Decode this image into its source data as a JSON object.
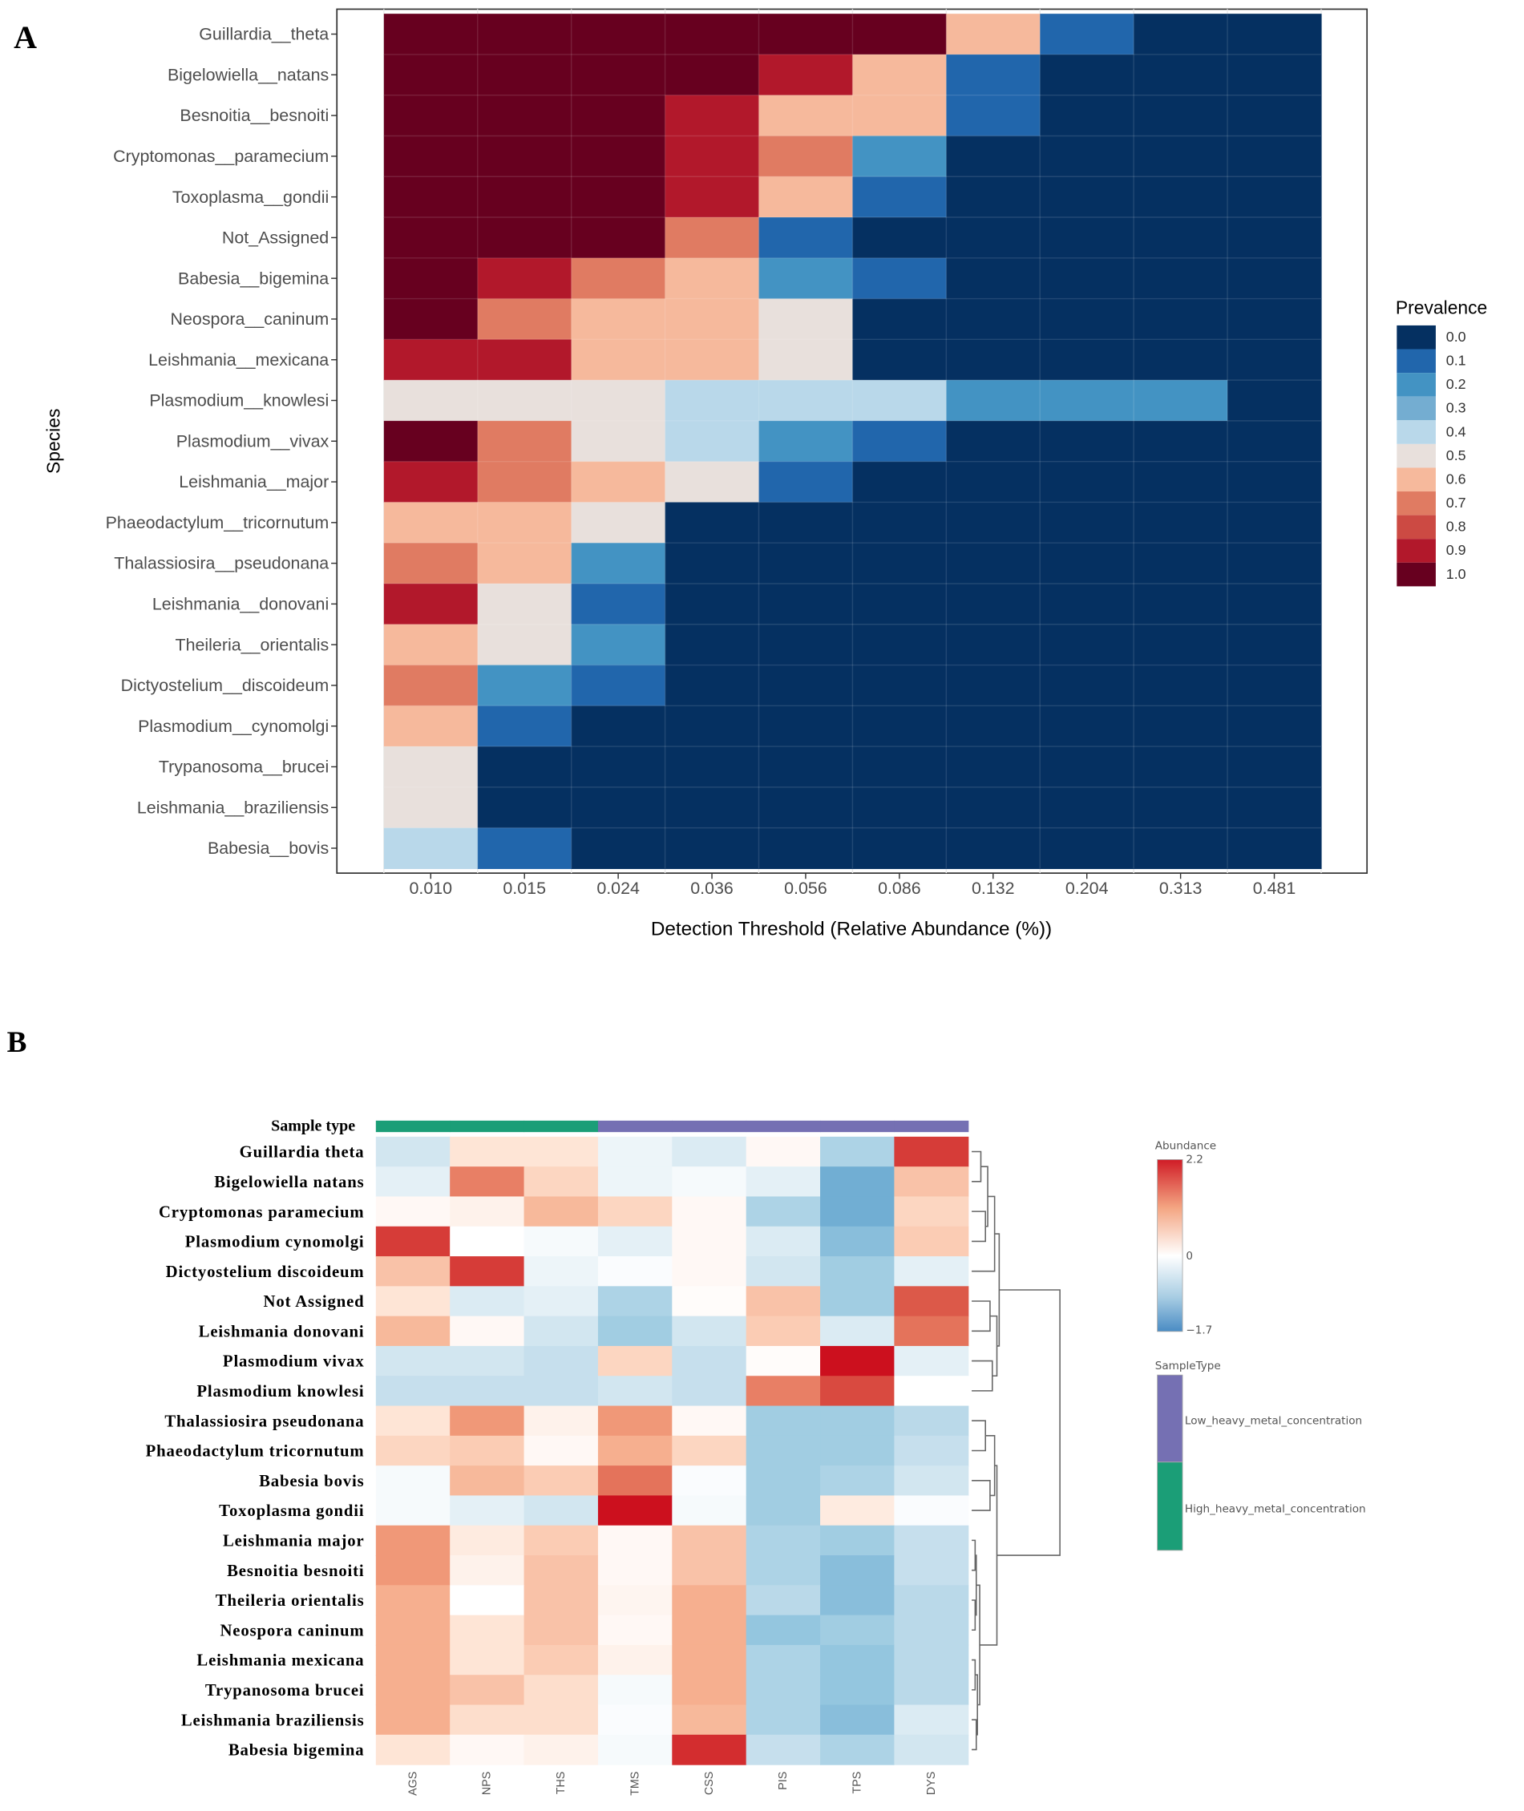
{
  "panel_labels": {
    "a": "A",
    "b": "B"
  },
  "chart_data": [
    {
      "type": "heatmap",
      "panel": "A",
      "xlabel": "Detection Threshold (Relative Abundance (%))",
      "ylabel": "Species",
      "x_categories": [
        "0.010",
        "0.015",
        "0.024",
        "0.036",
        "0.056",
        "0.086",
        "0.132",
        "0.204",
        "0.313",
        "0.481"
      ],
      "y_categories": [
        "Guillardia__theta",
        "Bigelowiella__natans",
        "Besnoitia__besnoiti",
        "Cryptomonas__paramecium",
        "Toxoplasma__gondii",
        "Not_Assigned",
        "Babesia__bigemina",
        "Neospora__caninum",
        "Leishmania__mexicana",
        "Plasmodium__knowlesi",
        "Plasmodium__vivax",
        "Leishmania__major",
        "Phaeodactylum__tricornutum",
        "Thalassiosira__pseudonana",
        "Leishmania__donovani",
        "Theileria__orientalis",
        "Dictyostelium__discoideum",
        "Plasmodium__cynomolgi",
        "Trypanosoma__brucei",
        "Leishmania__braziliensis",
        "Babesia__bovis"
      ],
      "values": [
        [
          1,
          1,
          1,
          1,
          1,
          1,
          0.6,
          0.1,
          0,
          0
        ],
        [
          1,
          1,
          1,
          1,
          0.9,
          0.6,
          0.1,
          0,
          0,
          0
        ],
        [
          1,
          1,
          1,
          0.9,
          0.6,
          0.6,
          0.1,
          0,
          0,
          0
        ],
        [
          1,
          1,
          1,
          0.9,
          0.7,
          0.2,
          0,
          0,
          0,
          0
        ],
        [
          1,
          1,
          1,
          0.9,
          0.6,
          0.1,
          0,
          0,
          0,
          0
        ],
        [
          1,
          1,
          1,
          0.7,
          0.1,
          0,
          0,
          0,
          0,
          0
        ],
        [
          1,
          0.9,
          0.7,
          0.6,
          0.2,
          0.1,
          0,
          0,
          0,
          0
        ],
        [
          1,
          0.7,
          0.6,
          0.6,
          0.5,
          0,
          0,
          0,
          0,
          0
        ],
        [
          0.9,
          0.9,
          0.6,
          0.6,
          0.5,
          0,
          0,
          0,
          0,
          0
        ],
        [
          0.5,
          0.5,
          0.5,
          0.4,
          0.4,
          0.4,
          0.2,
          0.2,
          0.2,
          0
        ],
        [
          1,
          0.7,
          0.5,
          0.4,
          0.2,
          0.1,
          0,
          0,
          0,
          0
        ],
        [
          0.9,
          0.7,
          0.6,
          0.5,
          0.1,
          0,
          0,
          0,
          0,
          0
        ],
        [
          0.6,
          0.6,
          0.5,
          0,
          0,
          0,
          0,
          0,
          0,
          0
        ],
        [
          0.7,
          0.6,
          0.2,
          0,
          0,
          0,
          0,
          0,
          0,
          0
        ],
        [
          0.9,
          0.5,
          0.1,
          0,
          0,
          0,
          0,
          0,
          0,
          0
        ],
        [
          0.6,
          0.5,
          0.2,
          0,
          0,
          0,
          0,
          0,
          0,
          0
        ],
        [
          0.7,
          0.2,
          0.1,
          0,
          0,
          0,
          0,
          0,
          0,
          0
        ],
        [
          0.6,
          0.1,
          0,
          0,
          0,
          0,
          0,
          0,
          0,
          0
        ],
        [
          0.5,
          0,
          0,
          0,
          0,
          0,
          0,
          0,
          0,
          0
        ],
        [
          0.5,
          0,
          0,
          0,
          0,
          0,
          0,
          0,
          0,
          0
        ],
        [
          0.4,
          0.1,
          0,
          0,
          0,
          0,
          0,
          0,
          0,
          0
        ]
      ],
      "legend": {
        "title": "Prevalence",
        "position": "right",
        "levels": [
          "0.0",
          "0.1",
          "0.2",
          "0.3",
          "0.4",
          "0.5",
          "0.6",
          "0.7",
          "0.8",
          "0.9",
          "1.0"
        ],
        "colors": [
          "#053061",
          "#2166ac",
          "#4393c3",
          "#74add1",
          "#b9d8ea",
          "#e8e0dc",
          "#f6b99c",
          "#e07b62",
          "#cc4a43",
          "#b2182b",
          "#67001f"
        ]
      }
    },
    {
      "type": "heatmap",
      "panel": "B",
      "x_categories": [
        "AGS",
        "NPS",
        "THS",
        "TMS",
        "CSS",
        "PIS",
        "TPS",
        "DYS"
      ],
      "y_categories": [
        "Guillardia theta",
        "Bigelowiella natans",
        "Cryptomonas paramecium",
        "Plasmodium cynomolgi",
        "Dictyostelium discoideum",
        "Not Assigned",
        "Leishmania donovani",
        "Plasmodium vivax",
        "Plasmodium knowlesi",
        "Thalassiosira pseudonana",
        "Phaeodactylum tricornutum",
        "Babesia bovis",
        "Toxoplasma gondii",
        "Leishmania major",
        "Besnoitia besnoiti",
        "Theileria orientalis",
        "Neospora caninum",
        "Leishmania mexicana",
        "Trypanosoma brucei",
        "Leishmania braziliensis",
        "Babesia bigemina"
      ],
      "values": [
        [
          -0.5,
          0.4,
          0.4,
          -0.2,
          -0.4,
          0.1,
          -0.8,
          1.9
        ],
        [
          -0.3,
          1.4,
          0.6,
          -0.2,
          -0.1,
          -0.3,
          -1.3,
          0.8
        ],
        [
          0.1,
          0.2,
          0.9,
          0.6,
          0.1,
          -0.8,
          -1.3,
          0.6
        ],
        [
          1.9,
          0,
          -0.1,
          -0.3,
          0.1,
          -0.4,
          -1.1,
          0.7
        ],
        [
          0.8,
          1.9,
          -0.2,
          -0.05,
          0.1,
          -0.5,
          -0.9,
          -0.3
        ],
        [
          0.4,
          -0.4,
          -0.3,
          -0.8,
          0.05,
          0.8,
          -0.9,
          1.7
        ],
        [
          0.9,
          0.1,
          -0.5,
          -0.9,
          -0.5,
          0.7,
          -0.4,
          1.5
        ],
        [
          -0.5,
          -0.5,
          -0.6,
          0.6,
          -0.6,
          0.05,
          2.2,
          -0.3
        ],
        [
          -0.6,
          -0.6,
          -0.6,
          -0.5,
          -0.6,
          1.4,
          1.8,
          0
        ],
        [
          0.4,
          1.2,
          0.2,
          1.2,
          0.1,
          -0.9,
          -0.9,
          -0.7
        ],
        [
          0.6,
          0.7,
          0.1,
          1.0,
          0.6,
          -0.9,
          -0.9,
          -0.6
        ],
        [
          -0.1,
          0.9,
          0.7,
          1.5,
          -0.05,
          -0.9,
          -0.8,
          -0.5
        ],
        [
          -0.1,
          -0.3,
          -0.5,
          2.2,
          -0.1,
          -0.9,
          0.3,
          -0.05
        ],
        [
          1.2,
          0.3,
          0.7,
          0.1,
          0.8,
          -0.8,
          -0.9,
          -0.6
        ],
        [
          1.2,
          0.2,
          0.8,
          0.1,
          0.8,
          -0.8,
          -1.1,
          -0.6
        ],
        [
          1.0,
          0,
          0.8,
          0.15,
          1.0,
          -0.7,
          -1.1,
          -0.7
        ],
        [
          1.0,
          0.4,
          0.8,
          0.1,
          1.0,
          -1.0,
          -0.9,
          -0.7
        ],
        [
          1.0,
          0.4,
          0.7,
          0.2,
          1.0,
          -0.8,
          -1.0,
          -0.7
        ],
        [
          1.0,
          0.8,
          0.5,
          -0.1,
          1.0,
          -0.8,
          -1.0,
          -0.7
        ],
        [
          1.0,
          0.5,
          0.5,
          -0.05,
          0.9,
          -0.8,
          -1.1,
          -0.4
        ],
        [
          0.4,
          0.1,
          0.2,
          -0.1,
          2.0,
          -0.6,
          -0.8,
          -0.5
        ]
      ],
      "annotation": {
        "label": "Sample type",
        "column_groups": [
          "High_heavy_metal_concentration",
          "High_heavy_metal_concentration",
          "High_heavy_metal_concentration",
          "Low_heavy_metal_concentration",
          "Low_heavy_metal_concentration",
          "Low_heavy_metal_concentration",
          "Low_heavy_metal_concentration",
          "Low_heavy_metal_concentration"
        ]
      },
      "legend": {
        "abundance_title": "Abundance",
        "abundance_ticks": [
          "2.2",
          "0",
          "−1.7"
        ],
        "range": [
          -1.7,
          2.2
        ],
        "sampletype_title": "SampleType",
        "groups": [
          {
            "label": "Low_heavy_metal_concentration",
            "color": "#7570b3"
          },
          {
            "label": "High_heavy_metal_concentration",
            "color": "#1b9e77"
          }
        ]
      }
    }
  ]
}
